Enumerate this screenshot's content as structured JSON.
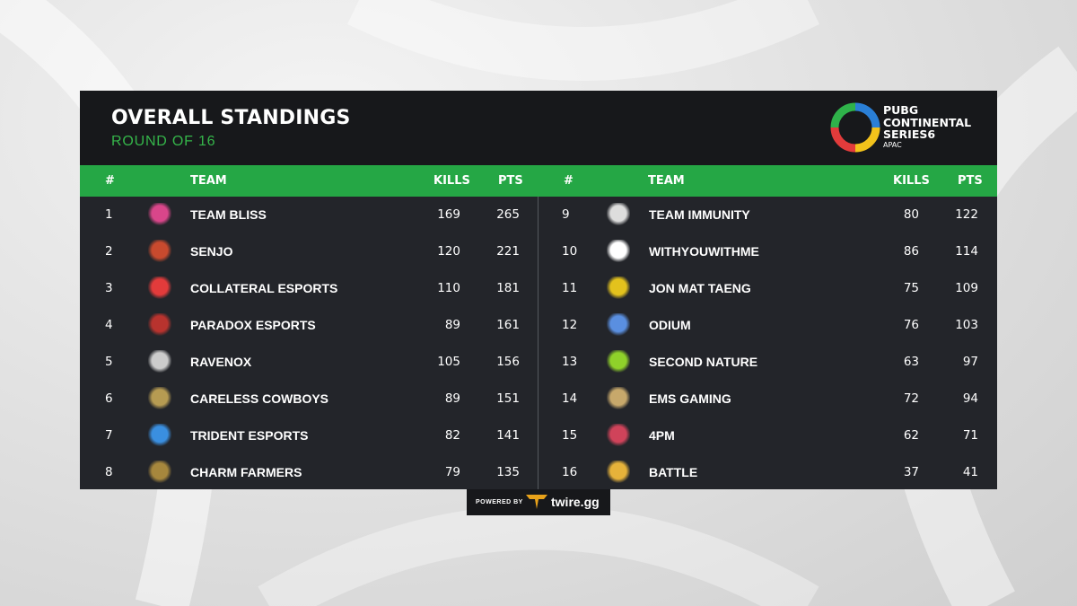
{
  "header": {
    "title": "OVERALL STANDINGS",
    "subtitle": "ROUND OF 16",
    "logo_line1": "PUBG",
    "logo_line2": "CONTINENTAL",
    "logo_line3": "SERIES6",
    "logo_sub": "APAC"
  },
  "columns": {
    "rank": "#",
    "team": "TEAM",
    "kills": "KILLS",
    "pts": "PTS"
  },
  "left_rows": [
    {
      "rank": "1",
      "team": "TEAM BLISS",
      "kills": "169",
      "pts": "265"
    },
    {
      "rank": "2",
      "team": "SENJO",
      "kills": "120",
      "pts": "221"
    },
    {
      "rank": "3",
      "team": "COLLATERAL ESPORTS",
      "kills": "110",
      "pts": "181"
    },
    {
      "rank": "4",
      "team": "PARADOX ESPORTS",
      "kills": "89",
      "pts": "161"
    },
    {
      "rank": "5",
      "team": "RAVENOX",
      "kills": "105",
      "pts": "156"
    },
    {
      "rank": "6",
      "team": "CARELESS COWBOYS",
      "kills": "89",
      "pts": "151"
    },
    {
      "rank": "7",
      "team": "TRIDENT ESPORTS",
      "kills": "82",
      "pts": "141"
    },
    {
      "rank": "8",
      "team": "CHARM FARMERS",
      "kills": "79",
      "pts": "135"
    }
  ],
  "right_rows": [
    {
      "rank": "9",
      "team": "TEAM IMMUNITY",
      "kills": "80",
      "pts": "122"
    },
    {
      "rank": "10",
      "team": "WITHYOUWITHME",
      "kills": "86",
      "pts": "114"
    },
    {
      "rank": "11",
      "team": "JON MAT TAENG",
      "kills": "75",
      "pts": "109"
    },
    {
      "rank": "12",
      "team": "ODIUM",
      "kills": "76",
      "pts": "103"
    },
    {
      "rank": "13",
      "team": "SECOND NATURE",
      "kills": "63",
      "pts": "97"
    },
    {
      "rank": "14",
      "team": "EMS GAMING",
      "kills": "72",
      "pts": "94"
    },
    {
      "rank": "15",
      "team": "4PM",
      "kills": "62",
      "pts": "71"
    },
    {
      "rank": "16",
      "team": "BATTLE",
      "kills": "37",
      "pts": "41"
    }
  ],
  "footer": {
    "powered_by": "POWERED BY",
    "brand": "twire.gg"
  },
  "colors": {
    "accent_green": "#25a745",
    "subtitle_green": "#35b54a",
    "panel": "#23252a",
    "header": "#17181b"
  }
}
